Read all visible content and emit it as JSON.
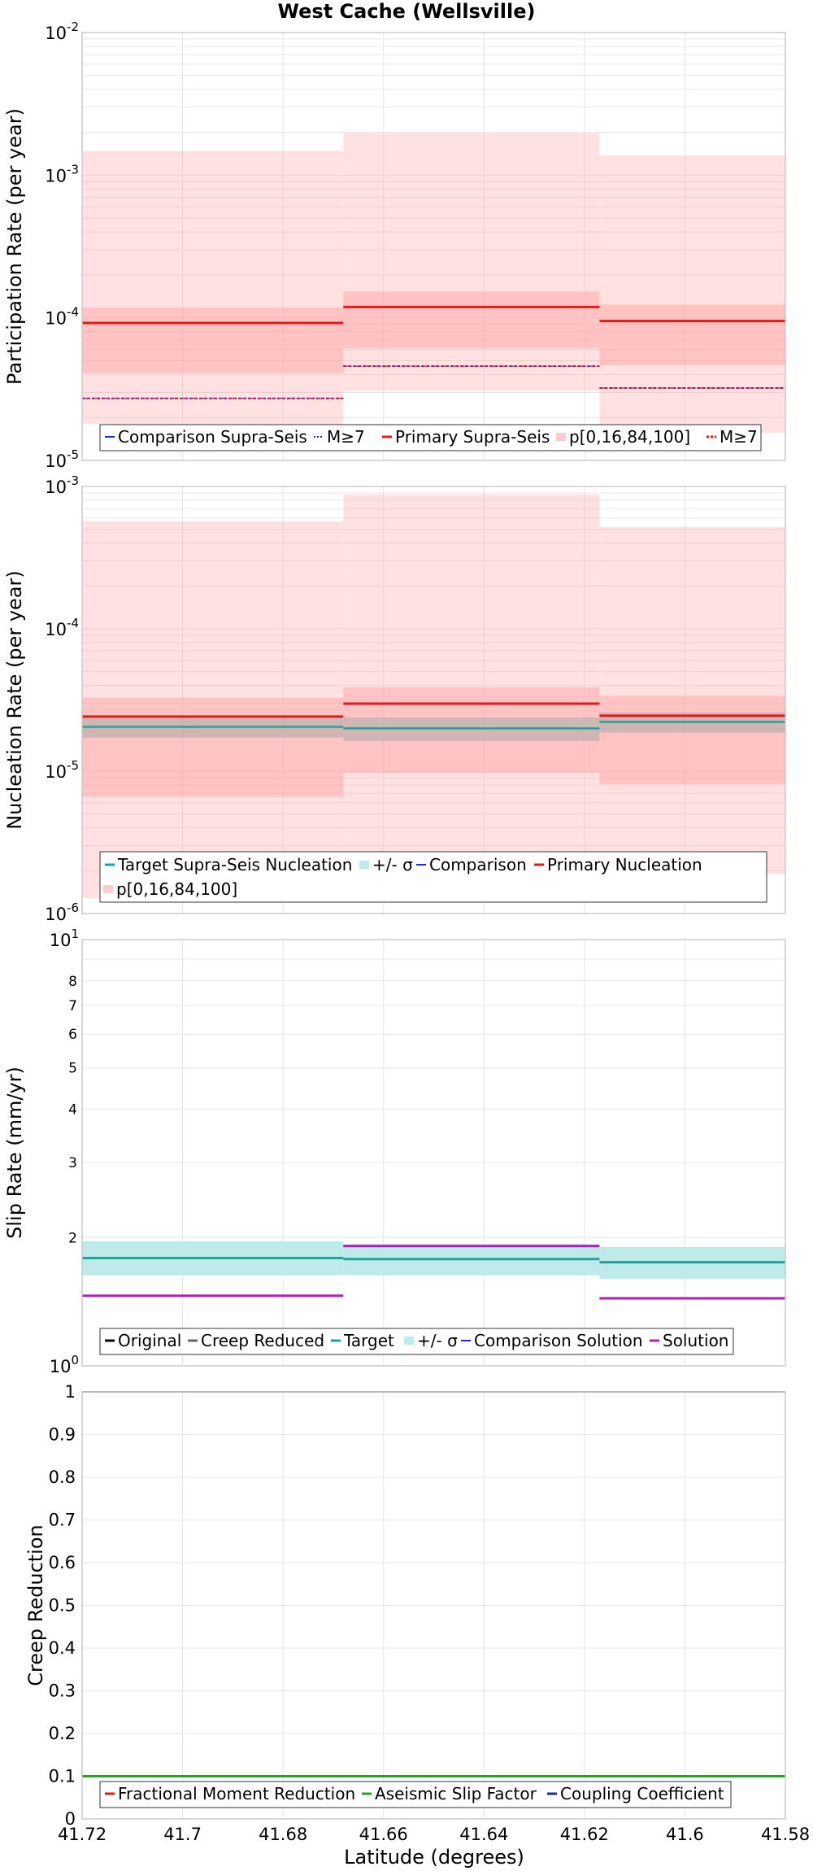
{
  "title": "West Cache (Wellsville)",
  "xlabel": "Latitude (degrees)",
  "x_ticks": [
    "41.72",
    "41.7",
    "41.68",
    "41.66",
    "41.64",
    "41.62",
    "41.6",
    "41.58"
  ],
  "colors": {
    "primary": "#e31a1c",
    "comparison": "#1f2bc9",
    "band": "#ff9a9a",
    "target": "#1aa59a",
    "target_band": "#bfeaea",
    "solution": "#b01fb5",
    "creep_reduced": "#666666",
    "gray_band": "#aaaaaa",
    "aseismic": "#1fa81f",
    "coupling": "#1f2b9a",
    "fractional": "#e31a1c",
    "original": "#000000"
  },
  "chart_data": [
    {
      "type": "line",
      "ylabel": "Participation Rate (per year)",
      "yscale": "log",
      "xlim": [
        41.72,
        41.58
      ],
      "ylim": [
        1e-05,
        0.01
      ],
      "grid": true,
      "legend_position": "bottom",
      "y_ticks": [
        {
          "base": "10",
          "exp": "-5"
        },
        {
          "base": "10",
          "exp": "-4"
        },
        {
          "base": "10",
          "exp": "-3"
        },
        {
          "base": "10",
          "exp": "-2"
        }
      ],
      "legend": [
        "Comparison Supra-Seis",
        "M≥7",
        "Primary Supra-Seis",
        "p[0,16,84,100]",
        "M≥7"
      ],
      "segments": [
        {
          "x": [
            41.72,
            41.668
          ],
          "primary": 9.2e-05,
          "p_min": 1.8e-05,
          "p16": 4.1e-05,
          "p84": 0.000118,
          "p_max": 0.00148,
          "m7": 2.72e-05
        },
        {
          "x": [
            41.668,
            41.617
          ],
          "primary": 0.000119,
          "p_min": 3.07e-05,
          "p16": 6.1e-05,
          "p84": 0.000153,
          "p_max": 0.00198,
          "m7": 4.58e-05
        },
        {
          "x": [
            41.617,
            41.58
          ],
          "primary": 9.5e-05,
          "p_min": 1.56e-05,
          "p16": 4.65e-05,
          "p84": 0.000124,
          "p_max": 0.00138,
          "m7": 3.22e-05
        }
      ]
    },
    {
      "type": "line",
      "ylabel": "Nucleation Rate (per year)",
      "yscale": "log",
      "xlim": [
        41.72,
        41.58
      ],
      "ylim": [
        1e-06,
        0.001
      ],
      "grid": true,
      "legend_position": "bottom",
      "y_ticks": [
        {
          "base": "10",
          "exp": "-6"
        },
        {
          "base": "10",
          "exp": "-5"
        },
        {
          "base": "10",
          "exp": "-4"
        },
        {
          "base": "10",
          "exp": "-3"
        }
      ],
      "legend": [
        "Target Supra-Seis Nucleation",
        "+/- σ",
        "Comparison",
        "Primary Nucleation",
        "p[0,16,84,100]"
      ],
      "segments": [
        {
          "x": [
            41.72,
            41.668
          ],
          "primary": 2.42e-05,
          "target": 2.05e-05,
          "target_lo": 1.72e-05,
          "target_hi": 2.4e-05,
          "p_min": 1.28e-06,
          "p16": 6.6e-06,
          "p84": 3.28e-05,
          "p_max": 0.00057
        },
        {
          "x": [
            41.668,
            41.617
          ],
          "primary": 2.98e-05,
          "target": 2e-05,
          "target_lo": 1.63e-05,
          "target_hi": 2.38e-05,
          "p_min": 2.1e-06,
          "p16": 9.7e-06,
          "p84": 3.88e-05,
          "p_max": 0.00088
        },
        {
          "x": [
            41.617,
            41.58
          ],
          "primary": 2.45e-05,
          "target": 2.22e-05,
          "target_lo": 1.87e-05,
          "target_hi": 2.58e-05,
          "p_min": 1.9e-06,
          "p16": 8.1e-06,
          "p84": 3.38e-05,
          "p_max": 0.00052
        }
      ]
    },
    {
      "type": "line",
      "ylabel": "Slip Rate (mm/yr)",
      "yscale": "log",
      "xlim": [
        41.72,
        41.58
      ],
      "ylim": [
        1,
        10
      ],
      "grid": true,
      "legend_position": "bottom",
      "y_ticks": [
        {
          "base": "10",
          "exp": "1"
        },
        {
          "base": "10",
          "exp": "0"
        }
      ],
      "y_minor_ticks": [
        "2",
        "3",
        "4",
        "5",
        "6",
        "7",
        "8"
      ],
      "legend": [
        "Original",
        "Creep Reduced",
        "Target",
        "+/- σ",
        "Comparison Solution",
        "Solution"
      ],
      "segments": [
        {
          "x": [
            41.72,
            41.668
          ],
          "target": 1.79,
          "sigma_lo": 1.63,
          "sigma_hi": 1.96,
          "solution": 1.46
        },
        {
          "x": [
            41.668,
            41.617
          ],
          "target": 1.78,
          "sigma_lo": 1.63,
          "sigma_hi": 1.93,
          "solution": 1.91
        },
        {
          "x": [
            41.617,
            41.58
          ],
          "target": 1.75,
          "sigma_lo": 1.6,
          "sigma_hi": 1.9,
          "solution": 1.44
        }
      ]
    },
    {
      "type": "line",
      "ylabel": "Creep Reduction",
      "yscale": "linear",
      "xlim": [
        41.72,
        41.58
      ],
      "ylim": [
        0,
        1
      ],
      "grid": true,
      "legend_position": "bottom",
      "y_ticks": [
        "0",
        "0.1",
        "0.2",
        "0.3",
        "0.4",
        "0.5",
        "0.6",
        "0.7",
        "0.8",
        "0.9",
        "1"
      ],
      "legend": [
        "Fractional Moment Reduction",
        "Aseismic Slip Factor",
        "Coupling Coefficient"
      ],
      "series": [
        {
          "name": "Fractional Moment Reduction",
          "value": 0.1
        },
        {
          "name": "Aseismic Slip Factor",
          "value": 0.1
        },
        {
          "name": "Coupling Coefficient",
          "value": 1.0
        }
      ]
    }
  ]
}
